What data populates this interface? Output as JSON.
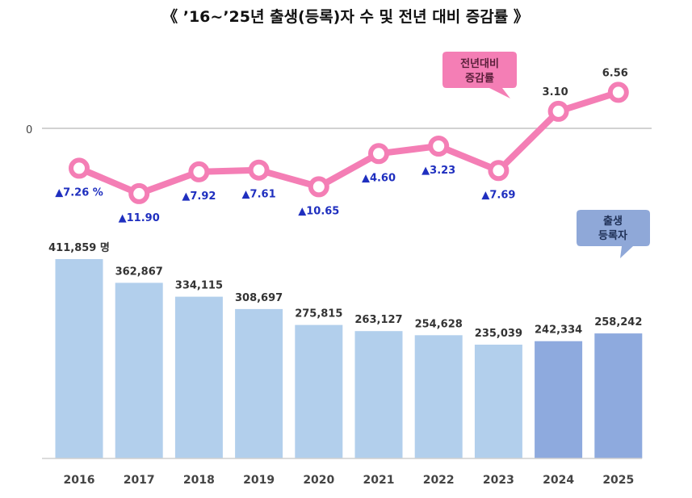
{
  "title": "《 ’16~’25년 출생(등록)자 수 및 전년 대비 증감률 》",
  "legend_rate": {
    "line1": "전년대비",
    "line2": "증감률",
    "color": "#f47eb5"
  },
  "legend_births": {
    "line1": "출생",
    "line2": "등록자",
    "color": "#8fa8d8"
  },
  "colors": {
    "bar_past": "#b2cfec",
    "bar_recent": "#8eaade",
    "line": "#f47eb5",
    "decrease_label": "#1f2fbf",
    "increase_label": "#333333"
  },
  "chart_data": [
    {
      "type": "line",
      "series": [
        {
          "name": "전년대비 증감률",
          "values": [
            -7.26,
            -11.9,
            -7.92,
            -7.61,
            -10.65,
            -4.6,
            -3.23,
            -7.69,
            3.1,
            6.56
          ]
        }
      ],
      "categories": [
        "2016",
        "2017",
        "2018",
        "2019",
        "2020",
        "2021",
        "2022",
        "2023",
        "2024",
        "2025"
      ],
      "zero_label": "0",
      "labels": [
        "▲7.26 %",
        "▲11.90",
        "▲7.92",
        "▲7.61",
        "▲10.65",
        "▲4.60",
        "▲3.23",
        "▲7.69",
        "3.10",
        "6.56"
      ]
    },
    {
      "type": "bar",
      "series": [
        {
          "name": "출생 등록자",
          "values": [
            411859,
            362867,
            334115,
            308697,
            275815,
            263127,
            254628,
            235039,
            242334,
            258242
          ]
        }
      ],
      "categories": [
        "2016",
        "2017",
        "2018",
        "2019",
        "2020",
        "2021",
        "2022",
        "2023",
        "2024",
        "2025"
      ],
      "labels": [
        "411,859 명",
        "362,867",
        "334,115",
        "308,697",
        "275,815",
        "263,127",
        "254,628",
        "235,039",
        "242,334",
        "258,242"
      ]
    }
  ]
}
